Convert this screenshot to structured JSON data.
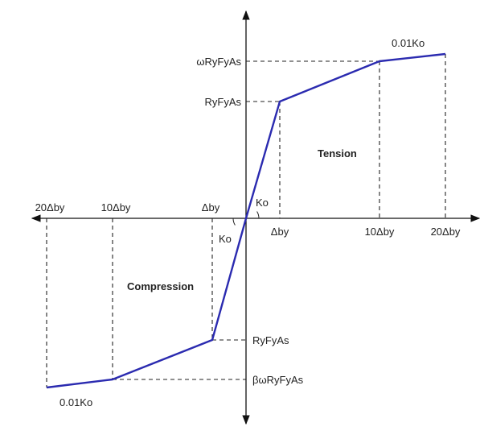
{
  "colors": {
    "curve": "#2b2bb0",
    "axis": "#111111",
    "guide": "#222222"
  },
  "tension": {
    "region_label": "Tension",
    "force_labels": {
      "yield": "RyFyAs",
      "max": "ωRyFyAs"
    },
    "disp_labels": {
      "yield": "Δby",
      "ten": "10Δby",
      "twenty": "20Δby"
    },
    "stiffness_label_initial": "Ko",
    "stiffness_label_post": "0.01Ko",
    "backbone": [
      {
        "disp_multiple": 0,
        "force_multiple": 0
      },
      {
        "disp_multiple": 1,
        "force_multiple": 1
      },
      {
        "disp_multiple": 10,
        "force_multiple": "ω"
      },
      {
        "disp_multiple": 20,
        "force_multiple": "ω + 0.01Ko·10Δby"
      }
    ]
  },
  "compression": {
    "region_label": "Compression",
    "force_labels": {
      "yield": "RyFyAs",
      "max": "βωRyFyAs"
    },
    "disp_labels": {
      "yield": "Δby",
      "ten": "10Δby",
      "twenty": "20Δby"
    },
    "stiffness_label_initial": "Ko",
    "stiffness_label_post": "0.01Ko",
    "backbone": [
      {
        "disp_multiple": 0,
        "force_multiple": 0
      },
      {
        "disp_multiple": -1,
        "force_multiple": -1
      },
      {
        "disp_multiple": -10,
        "force_multiple": "-βω"
      },
      {
        "disp_multiple": -20,
        "force_multiple": "-(βω + 0.01Ko·10Δby)"
      }
    ]
  }
}
